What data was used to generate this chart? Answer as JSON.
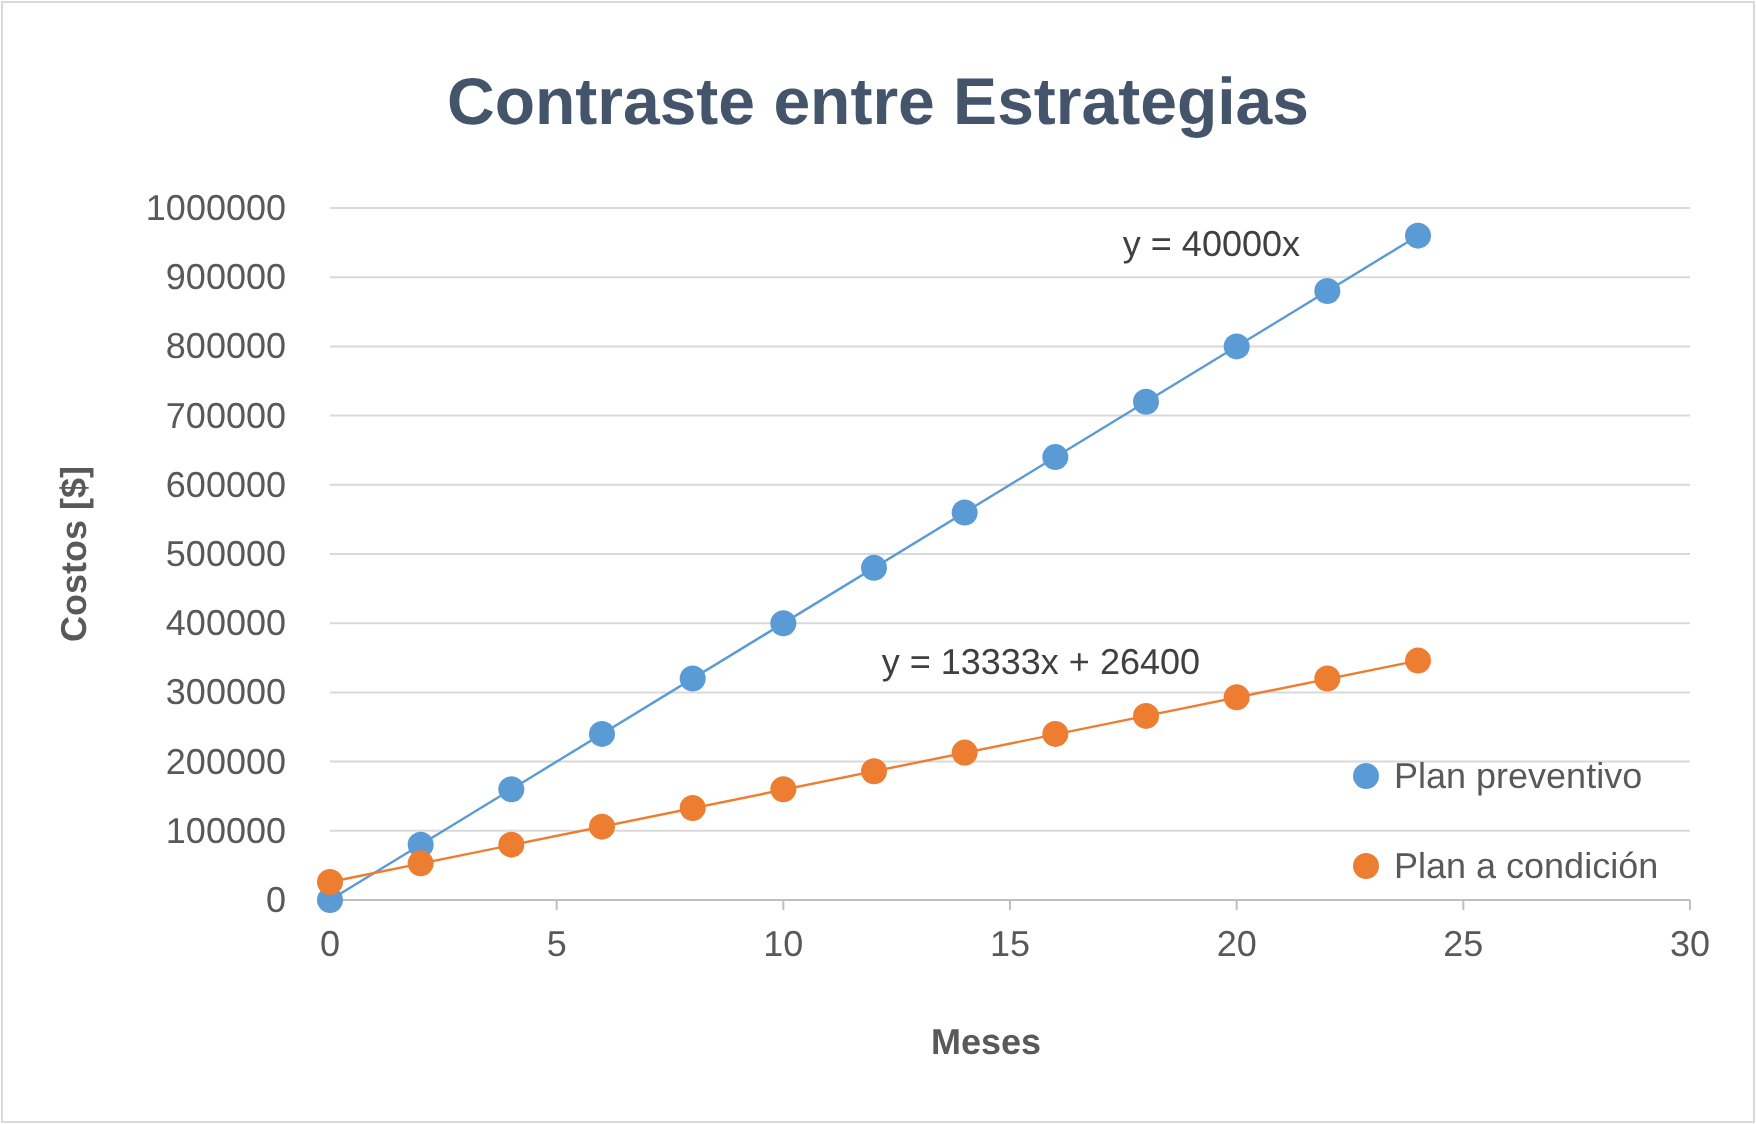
{
  "chart_data": {
    "type": "scatter",
    "title": "Contraste entre Estrategias",
    "xlabel": "Meses",
    "ylabel": "Costos [$]",
    "xlim": [
      0,
      30
    ],
    "xticks": [
      0,
      5,
      10,
      15,
      20,
      25,
      30
    ],
    "ylim": [
      0,
      1000000
    ],
    "yticks": [
      0,
      100000,
      200000,
      300000,
      400000,
      500000,
      600000,
      700000,
      800000,
      900000,
      1000000
    ],
    "grid": "y",
    "legend": "right",
    "marker": "circle",
    "series": [
      {
        "name": "Plan preventivo",
        "color": "#5b9bd5",
        "x": [
          0,
          2,
          4,
          6,
          8,
          10,
          12,
          14,
          16,
          18,
          20,
          22,
          24
        ],
        "values": [
          0,
          80000,
          160000,
          240000,
          320000,
          400000,
          480000,
          560000,
          640000,
          720000,
          800000,
          880000,
          960000
        ]
      },
      {
        "name": "Plan a condición",
        "color": "#ed7d31",
        "x": [
          0,
          2,
          4,
          6,
          8,
          10,
          12,
          14,
          16,
          18,
          20,
          22,
          24
        ],
        "values": [
          26000,
          53000,
          80000,
          106000,
          133000,
          160000,
          186000,
          213000,
          240000,
          266000,
          293000,
          320000,
          346000
        ]
      },
      {
        "type": "line",
        "marker": "none",
        "color": "#5b9bd5",
        "x": [
          0,
          24
        ],
        "values": [
          0,
          960000
        ]
      },
      {
        "type": "line",
        "marker": "none",
        "color": "#ed7d31",
        "x": [
          0,
          24
        ],
        "values": [
          26000,
          346000
        ]
      }
    ],
    "annotations": [
      "y = 40000x",
      "y = 13333x + 26400"
    ]
  }
}
